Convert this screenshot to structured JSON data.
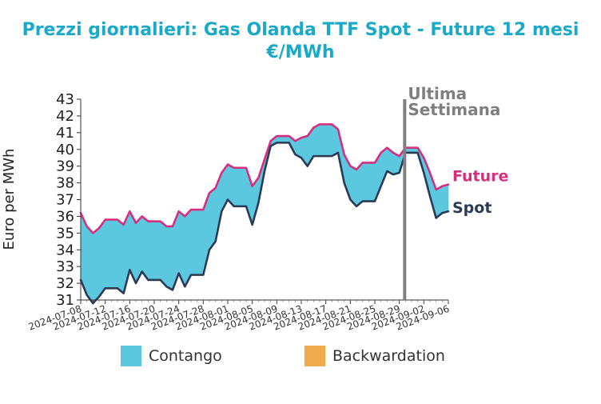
{
  "chart_data": {
    "type": "line",
    "title_line1": "Prezzi giornalieri: Gas Olanda TTF Spot - Future 12 mesi",
    "title_line2": "€/MWh",
    "ylabel": "Euro per MWh",
    "ylim": [
      31,
      43
    ],
    "yticks": [
      31,
      32,
      33,
      34,
      35,
      36,
      37,
      38,
      39,
      40,
      41,
      42,
      43
    ],
    "xlim": [
      "2024-07-08",
      "2024-09-06"
    ],
    "xticks": [
      "2024-07-08",
      "2024-07-12",
      "2024-07-16",
      "2024-07-20",
      "2024-07-24",
      "2024-07-28",
      "2024-08-01",
      "2024-08-05",
      "2024-08-09",
      "2024-08-13",
      "2024-08-17",
      "2024-08-21",
      "2024-08-25",
      "2024-08-29",
      "2024-09-02",
      "2024-09-06"
    ],
    "x": [
      "2024-07-08",
      "2024-07-09",
      "2024-07-10",
      "2024-07-11",
      "2024-07-12",
      "2024-07-13",
      "2024-07-14",
      "2024-07-15",
      "2024-07-16",
      "2024-07-17",
      "2024-07-18",
      "2024-07-19",
      "2024-07-20",
      "2024-07-21",
      "2024-07-22",
      "2024-07-23",
      "2024-07-24",
      "2024-07-25",
      "2024-07-26",
      "2024-07-27",
      "2024-07-28",
      "2024-07-29",
      "2024-07-30",
      "2024-07-31",
      "2024-08-01",
      "2024-08-02",
      "2024-08-03",
      "2024-08-04",
      "2024-08-05",
      "2024-08-06",
      "2024-08-07",
      "2024-08-08",
      "2024-08-09",
      "2024-08-10",
      "2024-08-11",
      "2024-08-12",
      "2024-08-13",
      "2024-08-14",
      "2024-08-15",
      "2024-08-16",
      "2024-08-17",
      "2024-08-18",
      "2024-08-19",
      "2024-08-20",
      "2024-08-21",
      "2024-08-22",
      "2024-08-23",
      "2024-08-24",
      "2024-08-25",
      "2024-08-26",
      "2024-08-27",
      "2024-08-28",
      "2024-08-29",
      "2024-08-30",
      "2024-08-31",
      "2024-09-01",
      "2024-09-02",
      "2024-09-03",
      "2024-09-04",
      "2024-09-05",
      "2024-09-06"
    ],
    "series": [
      {
        "name": "Future",
        "color": "#d62f7f",
        "values": [
          36.2,
          35.4,
          35.0,
          35.3,
          35.8,
          35.8,
          35.8,
          35.5,
          36.3,
          35.6,
          36.0,
          35.7,
          35.7,
          35.7,
          35.4,
          35.4,
          36.3,
          36.0,
          36.4,
          36.4,
          36.4,
          37.4,
          37.7,
          38.6,
          39.1,
          38.9,
          38.9,
          38.9,
          37.8,
          38.3,
          39.4,
          40.5,
          40.8,
          40.8,
          40.8,
          40.5,
          40.7,
          40.8,
          41.3,
          41.5,
          41.5,
          41.5,
          41.2,
          39.7,
          39.0,
          38.8,
          39.2,
          39.2,
          39.2,
          39.8,
          40.1,
          39.8,
          39.6,
          40.1,
          40.1,
          40.1,
          39.5,
          38.6,
          37.6,
          37.8,
          37.9
        ]
      },
      {
        "name": "Spot",
        "color": "#2b3a55",
        "values": [
          32.2,
          31.3,
          30.8,
          31.2,
          31.7,
          31.7,
          31.7,
          31.4,
          32.8,
          32.0,
          32.7,
          32.2,
          32.2,
          32.2,
          31.8,
          31.6,
          32.6,
          31.8,
          32.5,
          32.5,
          32.5,
          34.0,
          34.5,
          36.3,
          37.0,
          36.6,
          36.6,
          36.6,
          35.5,
          36.8,
          38.7,
          40.2,
          40.4,
          40.4,
          40.4,
          39.7,
          39.5,
          39.0,
          39.6,
          39.6,
          39.6,
          39.6,
          39.8,
          38.0,
          37.0,
          36.6,
          36.9,
          36.9,
          36.9,
          37.8,
          38.7,
          38.5,
          38.6,
          39.8,
          39.8,
          39.8,
          38.6,
          37.2,
          35.9,
          36.2,
          36.3
        ]
      }
    ],
    "fill_legend": [
      {
        "name": "Contango",
        "color": "#5bc8e0"
      },
      {
        "name": "Backwardation",
        "color": "#eeac4d"
      }
    ],
    "annotation": {
      "line1": "Ultima",
      "line2": "Settimana",
      "x": "2024-08-30",
      "color": "#808080"
    },
    "end_labels": {
      "future": "Future",
      "spot": "Spot"
    }
  }
}
